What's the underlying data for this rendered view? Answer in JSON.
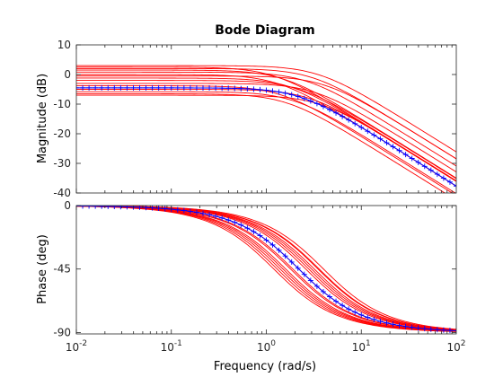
{
  "chart_data": [
    {
      "type": "line",
      "title": "Bode Diagram",
      "ylabel": "Magnitude (dB)",
      "xlabel": "",
      "xscale": "log",
      "xlim": [
        0.01,
        100
      ],
      "ylim": [
        -40,
        10
      ],
      "yticks": [
        10,
        0,
        -10,
        -20,
        -30,
        -40
      ],
      "grid": false,
      "colors": {
        "samples": "#ff0000",
        "nominal": "#0000ff"
      },
      "series": [
        {
          "role": "nominal",
          "marker": "+",
          "gain_db": -4.5,
          "pole": 2.2
        },
        {
          "role": "samples",
          "gain_db": [
            3.0,
            2.5,
            2.0,
            1.5,
            0.8,
            0.0,
            -0.5,
            -1.2,
            -2.0,
            -3.0,
            -3.8,
            -5.0,
            -5.8,
            -6.5,
            -7.0
          ],
          "pole": [
            3.5,
            1.2,
            3.0,
            1.5,
            2.6,
            1.3,
            4.0,
            1.8,
            2.2,
            3.2,
            1.4,
            2.8,
            1.9,
            1.6,
            3.6
          ]
        }
      ]
    },
    {
      "type": "line",
      "ylabel": "Phase (deg)",
      "xlabel": "Frequency  (rad/s)",
      "xscale": "log",
      "xlim": [
        0.01,
        100
      ],
      "ylim": [
        -91,
        0
      ],
      "yticks": [
        0,
        -45,
        -90
      ],
      "xticks": [
        "10",
        "10",
        "10",
        "10",
        "10"
      ],
      "xtick_exponents": [
        "-2",
        "-1",
        "0",
        "1",
        "2"
      ],
      "grid": false,
      "colors": {
        "samples": "#ff0000",
        "nominal": "#0000ff"
      },
      "series": [
        {
          "role": "nominal",
          "marker": "+",
          "pole": 2.2
        },
        {
          "role": "samples",
          "pole": [
            3.5,
            1.2,
            3.0,
            1.5,
            2.6,
            1.3,
            4.0,
            1.8,
            2.2,
            3.2,
            1.4,
            2.8,
            1.9,
            1.6,
            3.6
          ]
        }
      ]
    }
  ]
}
